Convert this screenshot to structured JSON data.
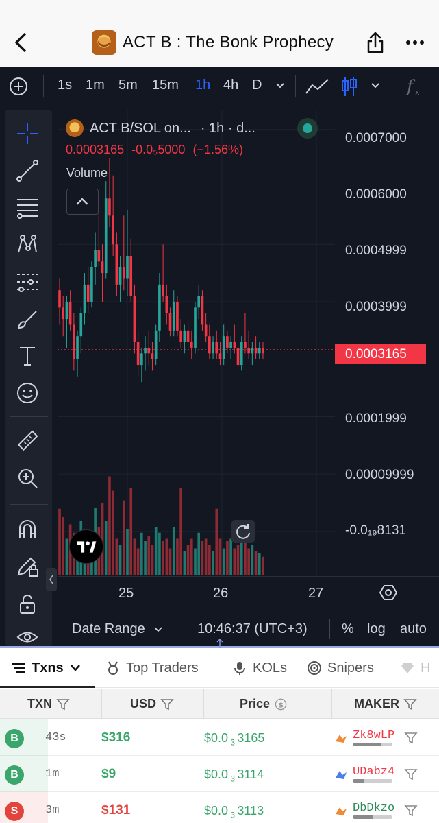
{
  "header": {
    "title": "ACT B : The Bonk Prophecy"
  },
  "toolbar": {
    "timeframes": [
      "1s",
      "1m",
      "5m",
      "15m",
      "1h",
      "4h",
      "D"
    ],
    "active_timeframe": "1h"
  },
  "chart": {
    "legend_symbol": "ACT B/SOL on...",
    "legend_interval": "· 1h · d...",
    "legend_price": "0.0003165",
    "legend_change": "-0.0₅5000",
    "legend_change_pct": "(−1.56%)",
    "volume_label": "Volume",
    "price_levels": [
      "0.0007000",
      "0.0006000",
      "0.0004999",
      "0.0003999",
      "0.0001999",
      "0.00009999",
      "-0.0₁₉8131"
    ],
    "current_price": "0.0003165",
    "time_labels": [
      "25",
      "26",
      "27"
    ],
    "date_range_label": "Date Range",
    "clock": "10:46:37 (UTC+3)",
    "percent_btn": "%",
    "log_btn": "log",
    "auto_btn": "auto",
    "up_color": "#26a69a",
    "down_color": "#f23645"
  },
  "chart_data": {
    "type": "candlestick",
    "ylim": [
      -1e-07,
      0.00072
    ],
    "candles": [
      [
        0.00042,
        0.00044,
        0.00036,
        0.00039
      ],
      [
        0.00039,
        0.00041,
        0.00034,
        0.00037
      ],
      [
        0.00037,
        0.00041,
        0.00032,
        0.0004
      ],
      [
        0.0004,
        0.00042,
        0.00035,
        0.00036
      ],
      [
        0.00036,
        0.00038,
        0.00028,
        0.0003
      ],
      [
        0.0003,
        0.00035,
        0.00027,
        0.00034
      ],
      [
        0.00034,
        0.00039,
        0.00031,
        0.00038
      ],
      [
        0.00038,
        0.00045,
        0.00036,
        0.00043
      ],
      [
        0.00043,
        0.00046,
        0.00038,
        0.0004
      ],
      [
        0.0004,
        0.00047,
        0.00039,
        0.00046
      ],
      [
        0.00046,
        0.00052,
        0.00043,
        0.00049
      ],
      [
        0.00049,
        0.00057,
        0.00046,
        0.00047
      ],
      [
        0.00047,
        0.0005,
        0.0004,
        0.00045
      ],
      [
        0.00045,
        0.00061,
        0.00044,
        0.00058
      ],
      [
        0.00058,
        0.00065,
        0.00053,
        0.00055
      ],
      [
        0.00055,
        0.00062,
        0.00048,
        0.0005
      ],
      [
        0.0005,
        0.00052,
        0.00041,
        0.00043
      ],
      [
        0.00043,
        0.00048,
        0.0004,
        0.00046
      ],
      [
        0.00046,
        0.00055,
        0.00042,
        0.00044
      ],
      [
        0.00044,
        0.00056,
        0.00041,
        0.00048
      ],
      [
        0.00048,
        0.00051,
        0.0004,
        0.00041
      ],
      [
        0.00041,
        0.00043,
        0.00031,
        0.00033
      ],
      [
        0.00033,
        0.00035,
        0.00027,
        0.00029
      ],
      [
        0.00029,
        0.00032,
        0.00026,
        0.00031
      ],
      [
        0.00031,
        0.00034,
        0.00028,
        0.00032
      ],
      [
        0.00032,
        0.00035,
        0.00029,
        0.00031
      ],
      [
        0.00031,
        0.00033,
        0.00028,
        0.0003
      ],
      [
        0.0003,
        0.00036,
        0.00029,
        0.00035
      ],
      [
        0.00035,
        0.00045,
        0.00033,
        0.00043
      ],
      [
        0.00043,
        0.0005,
        0.0004,
        0.00041
      ],
      [
        0.00041,
        0.00043,
        0.00036,
        0.00038
      ],
      [
        0.00038,
        0.00039,
        0.00034,
        0.00035
      ],
      [
        0.00035,
        0.00042,
        0.00034,
        0.0004
      ],
      [
        0.0004,
        0.00041,
        0.00034,
        0.00035
      ],
      [
        0.00035,
        0.00037,
        0.00032,
        0.00033
      ],
      [
        0.00033,
        0.00036,
        0.00031,
        0.00035
      ],
      [
        0.00035,
        0.00037,
        0.00032,
        0.00033
      ],
      [
        0.00033,
        0.00035,
        0.0003,
        0.00032
      ],
      [
        0.00032,
        0.0004,
        0.00031,
        0.00039
      ],
      [
        0.00039,
        0.00043,
        0.00037,
        0.00041
      ],
      [
        0.00041,
        0.00042,
        0.00035,
        0.00036
      ],
      [
        0.00036,
        0.00038,
        0.00033,
        0.00034
      ],
      [
        0.00034,
        0.00036,
        0.0003,
        0.00031
      ],
      [
        0.00031,
        0.00034,
        0.0003,
        0.00033
      ],
      [
        0.00033,
        0.00035,
        0.0003,
        0.00031
      ],
      [
        0.00031,
        0.00033,
        0.00029,
        0.0003
      ],
      [
        0.0003,
        0.00036,
        0.00029,
        0.00034
      ],
      [
        0.00034,
        0.00035,
        0.00031,
        0.00032
      ],
      [
        0.00032,
        0.00034,
        0.0003,
        0.00033
      ],
      [
        0.00033,
        0.00036,
        0.00031,
        0.00032
      ],
      [
        0.00032,
        0.00033,
        0.00028,
        0.00029
      ],
      [
        0.00029,
        0.00034,
        0.00028,
        0.00033
      ],
      [
        0.00033,
        0.00038,
        0.00031,
        0.00032
      ],
      [
        0.00032,
        0.00035,
        0.0003,
        0.00031
      ],
      [
        0.00031,
        0.00033,
        0.00029,
        0.00032
      ],
      [
        0.00032,
        0.00034,
        0.0003,
        0.00031
      ],
      [
        0.00031,
        0.00033,
        0.0003,
        0.00032
      ],
      [
        0.00032,
        0.00033,
        0.0003,
        0.00031
      ]
    ],
    "volumes": [
      0.55,
      0.48,
      0.3,
      0.42,
      0.35,
      0.22,
      0.45,
      0.38,
      0.2,
      0.25,
      0.56,
      0.4,
      0.6,
      0.45,
      0.82,
      0.7,
      0.3,
      0.25,
      0.62,
      0.38,
      0.72,
      0.3,
      0.22,
      0.35,
      0.28,
      0.32,
      0.25,
      0.4,
      0.35,
      0.28,
      0.3,
      0.22,
      0.4,
      0.3,
      0.72,
      0.2,
      0.25,
      0.3,
      0.22,
      0.35,
      0.28,
      0.3,
      0.25,
      0.2,
      0.55,
      0.3,
      0.22,
      0.28,
      0.3,
      0.22,
      0.25,
      0.35,
      0.28,
      0.22,
      0.25,
      0.2,
      0.18,
      0.15
    ]
  },
  "tabs": {
    "txns": "Txns",
    "top_traders": "Top Traders",
    "kols": "KOLs",
    "snipers": "Snipers",
    "holders": "H"
  },
  "table": {
    "headers": {
      "txn": "TXN",
      "usd": "USD",
      "price": "Price",
      "maker": "MAKER"
    },
    "rows": [
      {
        "type": "B",
        "age": "43s",
        "usd": "$316",
        "price_prefix": "$0.0",
        "price_sub": "3",
        "price_tail": "3165",
        "maker": "Zk8wLP",
        "maker_color": "#f23645",
        "maker_icon_color": "#f08a34",
        "bar_pct": 0.7
      },
      {
        "type": "B",
        "age": "1m",
        "usd": "$9",
        "price_prefix": "$0.0",
        "price_sub": "3",
        "price_tail": "3114",
        "maker": "UDabz4",
        "maker_color": "#f23645",
        "maker_icon_color": "#4a7ee8",
        "bar_pct": 0.3
      },
      {
        "type": "S",
        "age": "3m",
        "usd": "$131",
        "price_prefix": "$0.0",
        "price_sub": "3",
        "price_tail": "3113",
        "maker": "DbDkzo",
        "maker_color": "#2e8b57",
        "maker_icon_color": "#f08a34",
        "bar_pct": 0.5
      }
    ],
    "buy_color": "#3aa66b",
    "sell_color": "#e0443d"
  }
}
